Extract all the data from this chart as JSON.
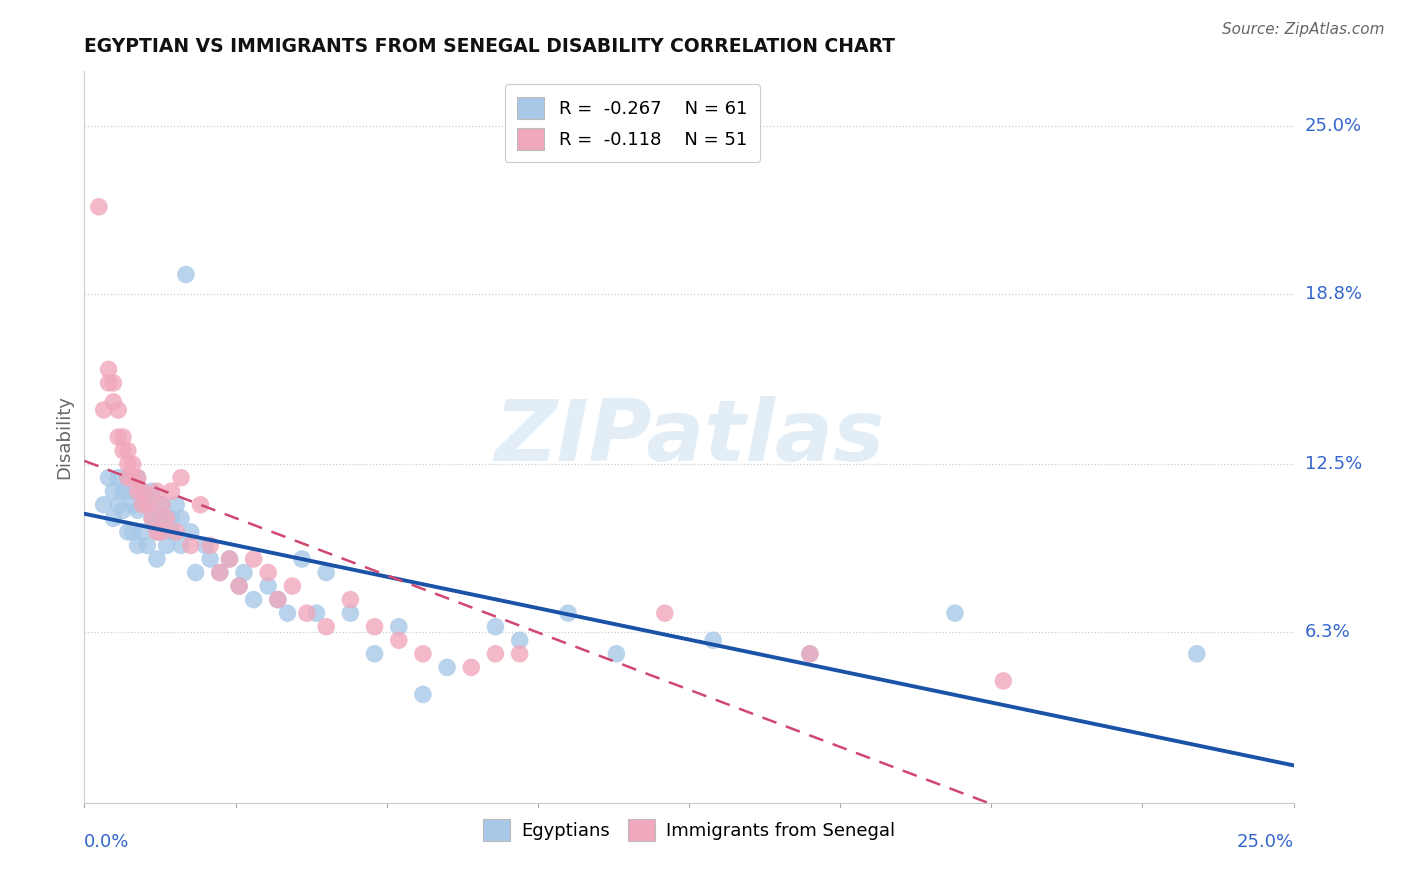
{
  "title": "EGYPTIAN VS IMMIGRANTS FROM SENEGAL DISABILITY CORRELATION CHART",
  "source": "Source: ZipAtlas.com",
  "ylabel": "Disability",
  "y_tick_labels": [
    "25.0%",
    "18.8%",
    "12.5%",
    "6.3%"
  ],
  "y_tick_values": [
    0.25,
    0.188,
    0.125,
    0.063
  ],
  "x_min": 0.0,
  "x_max": 0.25,
  "y_min": 0.0,
  "y_max": 0.27,
  "r_egyptian": -0.267,
  "n_egyptian": 61,
  "r_senegal": -0.118,
  "n_senegal": 51,
  "legend_label_1": "Egyptians",
  "legend_label_2": "Immigrants from Senegal",
  "color_egyptian": "#a8c8e8",
  "color_senegal": "#f0a8bc",
  "line_color_egyptian": "#1a52a8",
  "line_color_senegal": "#d04870",
  "watermark": "ZIPatlas",
  "egyptian_x": [
    0.004,
    0.005,
    0.006,
    0.006,
    0.007,
    0.007,
    0.008,
    0.008,
    0.009,
    0.009,
    0.009,
    0.01,
    0.01,
    0.011,
    0.011,
    0.011,
    0.012,
    0.012,
    0.013,
    0.013,
    0.014,
    0.014,
    0.015,
    0.015,
    0.016,
    0.016,
    0.017,
    0.018,
    0.018,
    0.019,
    0.02,
    0.02,
    0.021,
    0.022,
    0.023,
    0.025,
    0.026,
    0.028,
    0.03,
    0.032,
    0.033,
    0.035,
    0.038,
    0.04,
    0.042,
    0.045,
    0.048,
    0.05,
    0.055,
    0.06,
    0.065,
    0.07,
    0.075,
    0.085,
    0.09,
    0.1,
    0.11,
    0.13,
    0.15,
    0.18,
    0.23
  ],
  "egyptian_y": [
    0.11,
    0.12,
    0.115,
    0.105,
    0.12,
    0.11,
    0.115,
    0.108,
    0.1,
    0.12,
    0.115,
    0.1,
    0.11,
    0.12,
    0.108,
    0.095,
    0.115,
    0.1,
    0.11,
    0.095,
    0.105,
    0.115,
    0.09,
    0.1,
    0.105,
    0.11,
    0.095,
    0.105,
    0.1,
    0.11,
    0.095,
    0.105,
    0.195,
    0.1,
    0.085,
    0.095,
    0.09,
    0.085,
    0.09,
    0.08,
    0.085,
    0.075,
    0.08,
    0.075,
    0.07,
    0.09,
    0.07,
    0.085,
    0.07,
    0.055,
    0.065,
    0.04,
    0.05,
    0.065,
    0.06,
    0.07,
    0.055,
    0.06,
    0.055,
    0.07,
    0.055
  ],
  "senegal_x": [
    0.003,
    0.004,
    0.005,
    0.005,
    0.006,
    0.006,
    0.007,
    0.007,
    0.008,
    0.008,
    0.009,
    0.009,
    0.009,
    0.01,
    0.01,
    0.011,
    0.011,
    0.012,
    0.012,
    0.013,
    0.014,
    0.015,
    0.015,
    0.016,
    0.016,
    0.017,
    0.018,
    0.019,
    0.02,
    0.022,
    0.024,
    0.026,
    0.028,
    0.03,
    0.032,
    0.035,
    0.038,
    0.04,
    0.043,
    0.046,
    0.05,
    0.055,
    0.06,
    0.065,
    0.07,
    0.08,
    0.085,
    0.09,
    0.12,
    0.15,
    0.19
  ],
  "senegal_y": [
    0.22,
    0.145,
    0.16,
    0.155,
    0.155,
    0.148,
    0.145,
    0.135,
    0.135,
    0.13,
    0.13,
    0.125,
    0.12,
    0.125,
    0.12,
    0.12,
    0.115,
    0.115,
    0.11,
    0.11,
    0.105,
    0.115,
    0.1,
    0.11,
    0.1,
    0.105,
    0.115,
    0.1,
    0.12,
    0.095,
    0.11,
    0.095,
    0.085,
    0.09,
    0.08,
    0.09,
    0.085,
    0.075,
    0.08,
    0.07,
    0.065,
    0.075,
    0.065,
    0.06,
    0.055,
    0.05,
    0.055,
    0.055,
    0.07,
    0.055,
    0.045
  ]
}
